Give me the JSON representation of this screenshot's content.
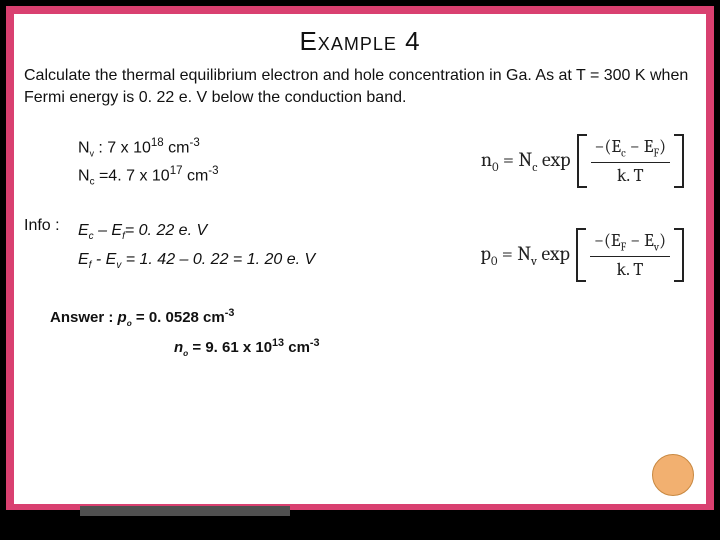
{
  "title": "Example 4",
  "problem": "Calculate the thermal equilibrium electron and hole concentration in Ga. As at T = 300 K when Fermi energy is 0. 22 e. V below the conduction band.",
  "given": {
    "nv_html": "N<sub class='ssub'>v</sub> : 7 x 10<sup>18</sup> cm<sup>-3</sup>",
    "nc_html": "N<sub>c</sub> =4. 7 x 10<sup>17</sup> cm<sup>-3</sup>"
  },
  "info_label": "Info :",
  "info": {
    "line1_html": "E<sub>c</sub> – E<sub>f</sub>= 0. 22 e. V",
    "line2_html": "E<sub>f</sub> - E<sub>v</sub> = 1. 42 – 0. 22 = 1. 20 e. V"
  },
  "answer": {
    "line1_html": "Answer : <i>p<sub class='ssub'>o</sub></i> = 0. 0528 cm<sup>-3</sup>",
    "line2_html": "<i>n<sub class='ssub'>o</sub></i> = 9. 61 x 10<sup>13</sup> cm<sup>-3</sup>"
  },
  "formula1": {
    "lhs": "n<sub>0</sub> = N<sub>c</sub> exp",
    "num": "−(E<sub>c</sub> − E<sub>F</sub>)",
    "den": "k. T"
  },
  "formula2": {
    "lhs": "p<sub>0</sub> = N<sub>v</sub> exp",
    "num": "−(E<sub>F</sub> − E<sub>v</sub>)",
    "den": "k. T"
  },
  "colors": {
    "pink": "#d94070",
    "circle": "#f2b070",
    "black": "#000000",
    "white": "#ffffff"
  }
}
